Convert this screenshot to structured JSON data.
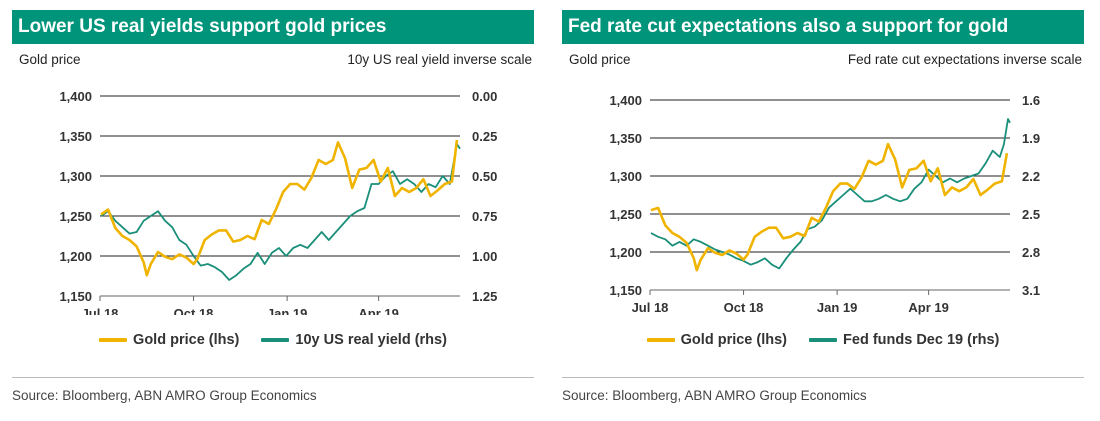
{
  "colors": {
    "header_bg": "#00957a",
    "gold": "#f0b400",
    "teal": "#1a8f7a",
    "grid": "#222222"
  },
  "charts": [
    {
      "title": "Lower US real yields support gold prices",
      "left_caption": "Gold price",
      "right_caption": "10y US real yield inverse scale",
      "source": "Source: Bloomberg, ABN AMRO Group Economics"
    },
    {
      "title": "Fed rate cut expectations also a support for gold",
      "left_caption": "Gold price",
      "right_caption": "Fed rate cut expectations inverse scale",
      "source": "Source: Bloomberg, ABN AMRO Group Economics"
    }
  ],
  "chart_data": [
    {
      "type": "line",
      "x_ticks": [
        "Jul 18",
        "Oct 18",
        "Jan 19",
        "Apr 19"
      ],
      "x_tick_dates": [
        "2018-07-01",
        "2018-10-01",
        "2019-01-01",
        "2019-04-01"
      ],
      "x_range": [
        "2018-07-01",
        "2019-06-20"
      ],
      "left_axis": {
        "range": [
          1150,
          1400
        ],
        "ticks": [
          1150,
          1200,
          1250,
          1300,
          1350,
          1400
        ],
        "tick_labels": [
          "1,150",
          "1,200",
          "1,250",
          "1,300",
          "1,350",
          "1,400"
        ]
      },
      "right_axis": {
        "range": [
          1.25,
          0.0
        ],
        "inverted": true,
        "ticks": [
          1.25,
          1.0,
          0.75,
          0.5,
          0.25,
          0.0
        ],
        "tick_labels": [
          "1.25",
          "1.00",
          "0.75",
          "0.50",
          "0.25",
          "0.00"
        ]
      },
      "grid": "horizontal",
      "legend_position": "bottom",
      "series": [
        {
          "name": "Gold price (lhs)",
          "axis": "left",
          "color": "#f0b400",
          "points": [
            [
              "2018-07-02",
              1252
            ],
            [
              "2018-07-09",
              1258
            ],
            [
              "2018-07-16",
              1235
            ],
            [
              "2018-07-23",
              1225
            ],
            [
              "2018-07-30",
              1220
            ],
            [
              "2018-08-06",
              1212
            ],
            [
              "2018-08-13",
              1192
            ],
            [
              "2018-08-16",
              1176
            ],
            [
              "2018-08-20",
              1190
            ],
            [
              "2018-08-27",
              1205
            ],
            [
              "2018-09-03",
              1199
            ],
            [
              "2018-09-10",
              1196
            ],
            [
              "2018-09-17",
              1202
            ],
            [
              "2018-09-24",
              1198
            ],
            [
              "2018-10-01",
              1190
            ],
            [
              "2018-10-05",
              1197
            ],
            [
              "2018-10-12",
              1220
            ],
            [
              "2018-10-19",
              1227
            ],
            [
              "2018-10-26",
              1232
            ],
            [
              "2018-11-02",
              1232
            ],
            [
              "2018-11-09",
              1218
            ],
            [
              "2018-11-16",
              1220
            ],
            [
              "2018-11-23",
              1225
            ],
            [
              "2018-11-30",
              1221
            ],
            [
              "2018-12-07",
              1245
            ],
            [
              "2018-12-14",
              1240
            ],
            [
              "2018-12-21",
              1258
            ],
            [
              "2018-12-28",
              1280
            ],
            [
              "2019-01-04",
              1290
            ],
            [
              "2019-01-11",
              1290
            ],
            [
              "2019-01-18",
              1283
            ],
            [
              "2019-01-25",
              1298
            ],
            [
              "2019-02-01",
              1320
            ],
            [
              "2019-02-08",
              1315
            ],
            [
              "2019-02-15",
              1320
            ],
            [
              "2019-02-20",
              1342
            ],
            [
              "2019-02-27",
              1322
            ],
            [
              "2019-03-06",
              1285
            ],
            [
              "2019-03-13",
              1308
            ],
            [
              "2019-03-20",
              1310
            ],
            [
              "2019-03-27",
              1320
            ],
            [
              "2019-04-03",
              1293
            ],
            [
              "2019-04-10",
              1310
            ],
            [
              "2019-04-17",
              1275
            ],
            [
              "2019-04-24",
              1285
            ],
            [
              "2019-05-01",
              1280
            ],
            [
              "2019-05-08",
              1285
            ],
            [
              "2019-05-15",
              1296
            ],
            [
              "2019-05-22",
              1275
            ],
            [
              "2019-05-29",
              1282
            ],
            [
              "2019-06-05",
              1290
            ],
            [
              "2019-06-12",
              1293
            ],
            [
              "2019-06-17",
              1345
            ]
          ]
        },
        {
          "name": "10y US real yield (rhs)",
          "axis": "right",
          "color": "#1a8f7a",
          "points": [
            [
              "2018-07-02",
              0.75
            ],
            [
              "2018-07-09",
              0.72
            ],
            [
              "2018-07-16",
              0.78
            ],
            [
              "2018-07-23",
              0.82
            ],
            [
              "2018-07-30",
              0.86
            ],
            [
              "2018-08-06",
              0.85
            ],
            [
              "2018-08-13",
              0.78
            ],
            [
              "2018-08-20",
              0.75
            ],
            [
              "2018-08-27",
              0.72
            ],
            [
              "2018-09-03",
              0.78
            ],
            [
              "2018-09-10",
              0.82
            ],
            [
              "2018-09-17",
              0.9
            ],
            [
              "2018-09-24",
              0.93
            ],
            [
              "2018-10-01",
              1.0
            ],
            [
              "2018-10-08",
              1.06
            ],
            [
              "2018-10-15",
              1.05
            ],
            [
              "2018-10-22",
              1.07
            ],
            [
              "2018-10-29",
              1.1
            ],
            [
              "2018-11-05",
              1.15
            ],
            [
              "2018-11-12",
              1.12
            ],
            [
              "2018-11-19",
              1.08
            ],
            [
              "2018-11-26",
              1.05
            ],
            [
              "2018-12-03",
              0.98
            ],
            [
              "2018-12-10",
              1.05
            ],
            [
              "2018-12-17",
              0.98
            ],
            [
              "2018-12-24",
              0.95
            ],
            [
              "2018-12-31",
              1.0
            ],
            [
              "2019-01-07",
              0.95
            ],
            [
              "2019-01-14",
              0.93
            ],
            [
              "2019-01-21",
              0.95
            ],
            [
              "2019-01-28",
              0.9
            ],
            [
              "2019-02-04",
              0.85
            ],
            [
              "2019-02-11",
              0.9
            ],
            [
              "2019-02-18",
              0.85
            ],
            [
              "2019-02-25",
              0.8
            ],
            [
              "2019-03-04",
              0.75
            ],
            [
              "2019-03-11",
              0.72
            ],
            [
              "2019-03-18",
              0.7
            ],
            [
              "2019-03-25",
              0.55
            ],
            [
              "2019-04-01",
              0.55
            ],
            [
              "2019-04-08",
              0.5
            ],
            [
              "2019-04-15",
              0.47
            ],
            [
              "2019-04-22",
              0.55
            ],
            [
              "2019-04-29",
              0.52
            ],
            [
              "2019-05-06",
              0.55
            ],
            [
              "2019-05-13",
              0.6
            ],
            [
              "2019-05-20",
              0.55
            ],
            [
              "2019-05-27",
              0.57
            ],
            [
              "2019-06-03",
              0.5
            ],
            [
              "2019-06-10",
              0.55
            ],
            [
              "2019-06-17",
              0.3
            ],
            [
              "2019-06-20",
              0.33
            ]
          ]
        }
      ]
    },
    {
      "type": "line",
      "x_ticks": [
        "Jul 18",
        "Oct 18",
        "Jan 19",
        "Apr 19"
      ],
      "x_tick_dates": [
        "2018-07-01",
        "2018-10-01",
        "2019-01-01",
        "2019-04-01"
      ],
      "x_range": [
        "2018-07-01",
        "2019-06-20"
      ],
      "left_axis": {
        "range": [
          1150,
          1400
        ],
        "ticks": [
          1150,
          1200,
          1250,
          1300,
          1350,
          1400
        ],
        "tick_labels": [
          "1,150",
          "1,200",
          "1,250",
          "1,300",
          "1,350",
          "1,400"
        ]
      },
      "right_axis": {
        "range": [
          3.1,
          1.6
        ],
        "inverted": true,
        "ticks": [
          3.1,
          2.8,
          2.5,
          2.2,
          1.9,
          1.6
        ],
        "tick_labels": [
          "3.1",
          "2.8",
          "2.5",
          "2.2",
          "1.9",
          "1.6"
        ]
      },
      "grid": "horizontal",
      "legend_position": "bottom",
      "series": [
        {
          "name": "Gold price (lhs)",
          "axis": "left",
          "color": "#f0b400",
          "points": [
            [
              "2018-07-02",
              1255
            ],
            [
              "2018-07-09",
              1258
            ],
            [
              "2018-07-16",
              1235
            ],
            [
              "2018-07-23",
              1225
            ],
            [
              "2018-07-30",
              1220
            ],
            [
              "2018-08-06",
              1212
            ],
            [
              "2018-08-13",
              1192
            ],
            [
              "2018-08-16",
              1176
            ],
            [
              "2018-08-20",
              1190
            ],
            [
              "2018-08-27",
              1205
            ],
            [
              "2018-09-03",
              1199
            ],
            [
              "2018-09-10",
              1196
            ],
            [
              "2018-09-17",
              1202
            ],
            [
              "2018-09-24",
              1198
            ],
            [
              "2018-10-01",
              1190
            ],
            [
              "2018-10-05",
              1197
            ],
            [
              "2018-10-12",
              1220
            ],
            [
              "2018-10-19",
              1227
            ],
            [
              "2018-10-26",
              1232
            ],
            [
              "2018-11-02",
              1232
            ],
            [
              "2018-11-09",
              1218
            ],
            [
              "2018-11-16",
              1220
            ],
            [
              "2018-11-23",
              1225
            ],
            [
              "2018-11-30",
              1221
            ],
            [
              "2018-12-07",
              1245
            ],
            [
              "2018-12-14",
              1240
            ],
            [
              "2018-12-21",
              1258
            ],
            [
              "2018-12-28",
              1280
            ],
            [
              "2019-01-04",
              1290
            ],
            [
              "2019-01-11",
              1290
            ],
            [
              "2019-01-18",
              1283
            ],
            [
              "2019-01-25",
              1298
            ],
            [
              "2019-02-01",
              1320
            ],
            [
              "2019-02-08",
              1315
            ],
            [
              "2019-02-15",
              1320
            ],
            [
              "2019-02-20",
              1342
            ],
            [
              "2019-02-27",
              1322
            ],
            [
              "2019-03-06",
              1285
            ],
            [
              "2019-03-13",
              1308
            ],
            [
              "2019-03-20",
              1310
            ],
            [
              "2019-03-27",
              1320
            ],
            [
              "2019-04-03",
              1293
            ],
            [
              "2019-04-10",
              1310
            ],
            [
              "2019-04-17",
              1275
            ],
            [
              "2019-04-24",
              1285
            ],
            [
              "2019-05-01",
              1280
            ],
            [
              "2019-05-08",
              1285
            ],
            [
              "2019-05-15",
              1296
            ],
            [
              "2019-05-22",
              1275
            ],
            [
              "2019-05-29",
              1282
            ],
            [
              "2019-06-05",
              1290
            ],
            [
              "2019-06-12",
              1293
            ],
            [
              "2019-06-17",
              1330
            ]
          ]
        },
        {
          "name": "Fed funds Dec 19 (rhs)",
          "axis": "right",
          "color": "#1a8f7a",
          "points": [
            [
              "2018-07-02",
              2.65
            ],
            [
              "2018-07-09",
              2.68
            ],
            [
              "2018-07-16",
              2.7
            ],
            [
              "2018-07-23",
              2.75
            ],
            [
              "2018-07-30",
              2.72
            ],
            [
              "2018-08-06",
              2.75
            ],
            [
              "2018-08-13",
              2.7
            ],
            [
              "2018-08-20",
              2.72
            ],
            [
              "2018-08-27",
              2.75
            ],
            [
              "2018-09-03",
              2.78
            ],
            [
              "2018-09-10",
              2.8
            ],
            [
              "2018-09-17",
              2.82
            ],
            [
              "2018-09-24",
              2.85
            ],
            [
              "2018-10-01",
              2.87
            ],
            [
              "2018-10-08",
              2.9
            ],
            [
              "2018-10-15",
              2.88
            ],
            [
              "2018-10-22",
              2.85
            ],
            [
              "2018-10-29",
              2.9
            ],
            [
              "2018-11-05",
              2.93
            ],
            [
              "2018-11-12",
              2.85
            ],
            [
              "2018-11-19",
              2.78
            ],
            [
              "2018-11-26",
              2.72
            ],
            [
              "2018-12-03",
              2.62
            ],
            [
              "2018-12-10",
              2.6
            ],
            [
              "2018-12-17",
              2.55
            ],
            [
              "2018-12-24",
              2.45
            ],
            [
              "2018-12-31",
              2.4
            ],
            [
              "2019-01-07",
              2.35
            ],
            [
              "2019-01-14",
              2.3
            ],
            [
              "2019-01-21",
              2.35
            ],
            [
              "2019-01-28",
              2.4
            ],
            [
              "2019-02-04",
              2.4
            ],
            [
              "2019-02-11",
              2.38
            ],
            [
              "2019-02-18",
              2.35
            ],
            [
              "2019-02-25",
              2.38
            ],
            [
              "2019-03-04",
              2.4
            ],
            [
              "2019-03-11",
              2.38
            ],
            [
              "2019-03-18",
              2.3
            ],
            [
              "2019-03-25",
              2.25
            ],
            [
              "2019-04-01",
              2.15
            ],
            [
              "2019-04-08",
              2.2
            ],
            [
              "2019-04-15",
              2.25
            ],
            [
              "2019-04-22",
              2.22
            ],
            [
              "2019-04-29",
              2.25
            ],
            [
              "2019-05-06",
              2.22
            ],
            [
              "2019-05-13",
              2.2
            ],
            [
              "2019-05-20",
              2.18
            ],
            [
              "2019-05-27",
              2.1
            ],
            [
              "2019-06-03",
              2.0
            ],
            [
              "2019-06-10",
              2.05
            ],
            [
              "2019-06-14",
              1.95
            ],
            [
              "2019-06-18",
              1.75
            ],
            [
              "2019-06-20",
              1.78
            ]
          ]
        }
      ]
    }
  ]
}
